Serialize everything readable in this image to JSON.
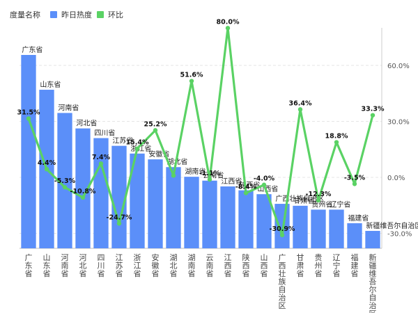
{
  "chart_data": {
    "type": "bar",
    "title": "",
    "legend": {
      "title": "度量名称",
      "placement": "top-left",
      "items": [
        {
          "name": "昨日热度",
          "color": "#5B8FF9",
          "marker": "square"
        },
        {
          "name": "环比",
          "color": "#5AD264",
          "marker": "square"
        }
      ]
    },
    "categories": [
      "广东省",
      "山东省",
      "河南省",
      "河北省",
      "四川省",
      "江苏省",
      "浙江省",
      "安徽省",
      "湖北省",
      "湖南省",
      "云南省",
      "江西省",
      "陕西省",
      "山西省",
      "广西壮族自治区",
      "甘肃省",
      "贵州省",
      "辽宁省",
      "福建省",
      "新疆维吾尔自治区"
    ],
    "series": [
      {
        "name": "昨日热度",
        "type": "bar",
        "color": "#5B8FF9",
        "values": [
          100,
          82,
          70,
          62,
          57,
          53,
          49,
          46,
          42,
          37,
          35,
          32,
          30,
          28,
          23,
          22,
          20,
          20,
          13,
          9
        ]
      },
      {
        "name": "环比",
        "type": "line",
        "color": "#5AD264",
        "axis": "right",
        "values": [
          31.5,
          4.4,
          -5.3,
          -10.8,
          7.4,
          -24.7,
          15.4,
          25.2,
          1.0,
          51.6,
          -1.1,
          80.0,
          -8.4,
          -4.0,
          -30.9,
          36.4,
          -12.3,
          18.8,
          -3.5,
          33.3
        ],
        "labels": [
          "31.5%",
          "4.4%",
          "-5.3%",
          "-10.8%",
          "7.4%",
          "-24.7%",
          "15.4%",
          "25.2%",
          "",
          "51.6%",
          "-1.1%",
          "80.0%",
          "-8.4%",
          "-4.0%",
          "-30.9%",
          "36.4%",
          "-12.3%",
          "18.8%",
          "-3.5%",
          "33.3%"
        ]
      }
    ],
    "y_right": {
      "ticks": [
        60,
        30,
        0,
        -30
      ],
      "tick_labels": [
        "60.0%",
        "30.0%",
        "0.0%",
        "-30.0%"
      ],
      "range": [
        -38,
        80
      ]
    },
    "grid": true
  }
}
